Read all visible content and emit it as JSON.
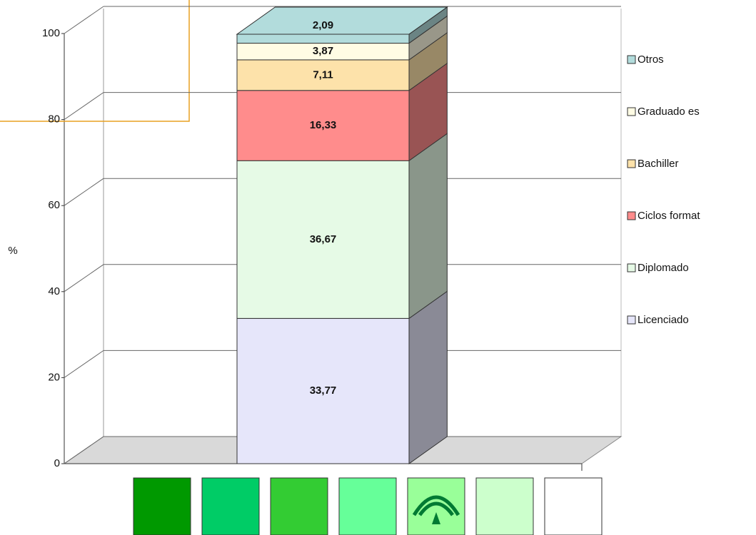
{
  "chart_data": {
    "type": "bar",
    "ylabel": "%",
    "ylim": [
      0,
      100
    ],
    "yticks": [
      0,
      20,
      40,
      60,
      80,
      100
    ],
    "grid": true,
    "legend": "right",
    "series": [
      {
        "name": "Licenciado",
        "color": "#e6e6fa",
        "values": [
          33.77
        ],
        "value_labels": [
          "33,77"
        ]
      },
      {
        "name": "Diplomado",
        "color": "#e6fae6",
        "values": [
          36.67
        ],
        "value_labels": [
          "36,67"
        ]
      },
      {
        "name": "Ciclos format",
        "color": "#ff8c8c",
        "values": [
          16.33
        ],
        "value_labels": [
          "16,33"
        ]
      },
      {
        "name": "Bachiller",
        "color": "#fde2aa",
        "values": [
          7.11
        ],
        "value_labels": [
          "7,11"
        ]
      },
      {
        "name": "Graduado es",
        "color": "#fffce4",
        "values": [
          3.87
        ],
        "value_labels": [
          "3,87"
        ]
      },
      {
        "name": "Otros",
        "color": "#b2dcdc",
        "values": [
          2.09
        ],
        "value_labels": [
          "2,09"
        ]
      }
    ]
  }
}
